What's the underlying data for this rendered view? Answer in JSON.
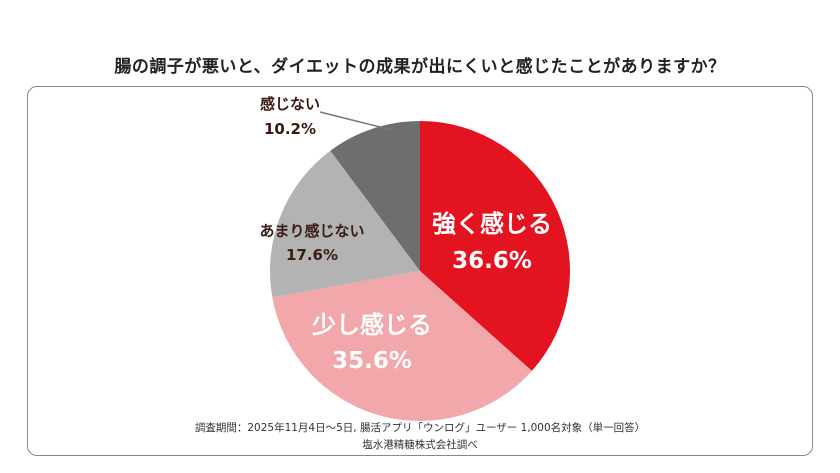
{
  "chart_data": {
    "type": "pie",
    "title": "腸の調子が悪いと、ダイエットの成果が出にくいと感じたことがありますか？",
    "slices": [
      {
        "label": "強く感じる",
        "value": 36.6,
        "value_label": "36.6%",
        "color": "#e3141f",
        "text_color": "#ffffff"
      },
      {
        "label": "少し感じる",
        "value": 35.6,
        "value_label": "35.6%",
        "color": "#f2a7aa",
        "text_color": "#ffffff"
      },
      {
        "label": "あまり感じない",
        "value": 17.6,
        "value_label": "17.6%",
        "color": "#b3b3b3",
        "text_color": "#3a1b12"
      },
      {
        "label": "感じない",
        "value": 10.2,
        "value_label": "10.2%",
        "color": "#6e6e6e",
        "text_color": "#3a1b12"
      }
    ],
    "start_angle": "12 o'clock",
    "direction": "clockwise",
    "legend": "none"
  },
  "source": {
    "line1": "調査期間：2025年11月4日〜5日, 腸活アプリ「ウンログ」ユーザー 1,000名対象（単一回答）",
    "line2": "塩水港精糖株式会社調べ"
  }
}
